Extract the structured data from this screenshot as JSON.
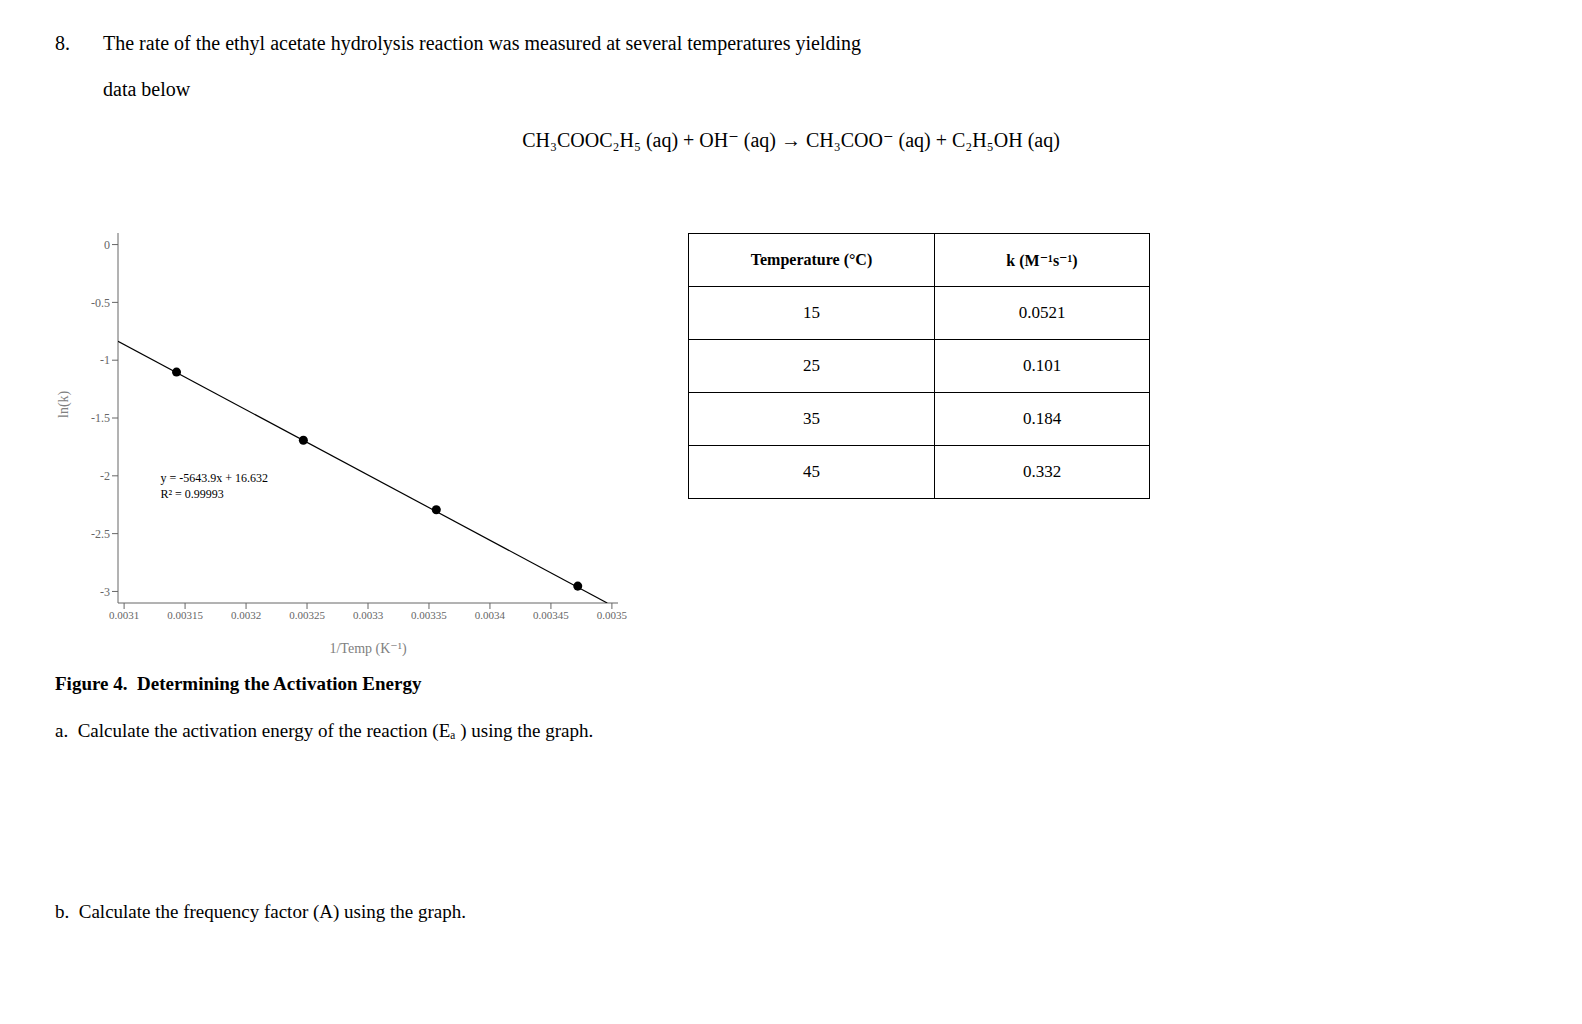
{
  "chart_data": {
    "type": "scatter",
    "title_number": "8.",
    "title": "The rate of the ethyl acetate hydrolysis reaction was measured at several temperatures yielding\ndata below",
    "subtitle": "CH₃COOC₂H₅ (aq) + OH⁻ (aq) → CH₃COO⁻ (aq) + C₂H₅OH (aq)",
    "caption": "Figure 4.  Determining the Activation Energy",
    "questions": [
      "a.  Calculate the activation energy of the reaction (Eₐ ) using the graph.",
      "b.  Calculate the frequency factor (A) using the graph."
    ],
    "table": {
      "columns": [
        "Temperature (°C)",
        "k (M⁻¹s⁻¹)"
      ],
      "rows": [
        [
          15,
          0.0521
        ],
        [
          25,
          0.101
        ],
        [
          35,
          0.184
        ],
        [
          45,
          0.332
        ]
      ]
    },
    "xlabel": "1/Temp (K⁻¹)",
    "ylabel": "ln(k)",
    "annotations": [
      "y = -5643.9x + 16.632",
      "R² = 0.99993"
    ],
    "series": [
      {
        "type": "scatter",
        "color": "black",
        "marker": "circle",
        "x": [
          0.003472,
          0.003356,
          0.003247,
          0.003143
        ],
        "values": [
          -2.954,
          -2.293,
          -1.693,
          -1.103
        ]
      },
      {
        "type": "line",
        "color": "black",
        "line_style": "solid",
        "x": [
          0.003095,
          0.003496164
        ],
        "values": [
          -0.8358705,
          -3.1
        ]
      }
    ],
    "xlim": [
      0.003095,
      0.003505
    ],
    "ylim": [
      -3.1,
      0.1
    ],
    "xticks": [
      0.0031,
      0.00315,
      0.0032,
      0.00325,
      0.0033,
      0.00335,
      0.0034,
      0.00345,
      0.0035
    ],
    "yticks": [
      0,
      -0.5,
      -1,
      -1.5,
      -2,
      -2.5,
      -3
    ],
    "grid": false
  }
}
